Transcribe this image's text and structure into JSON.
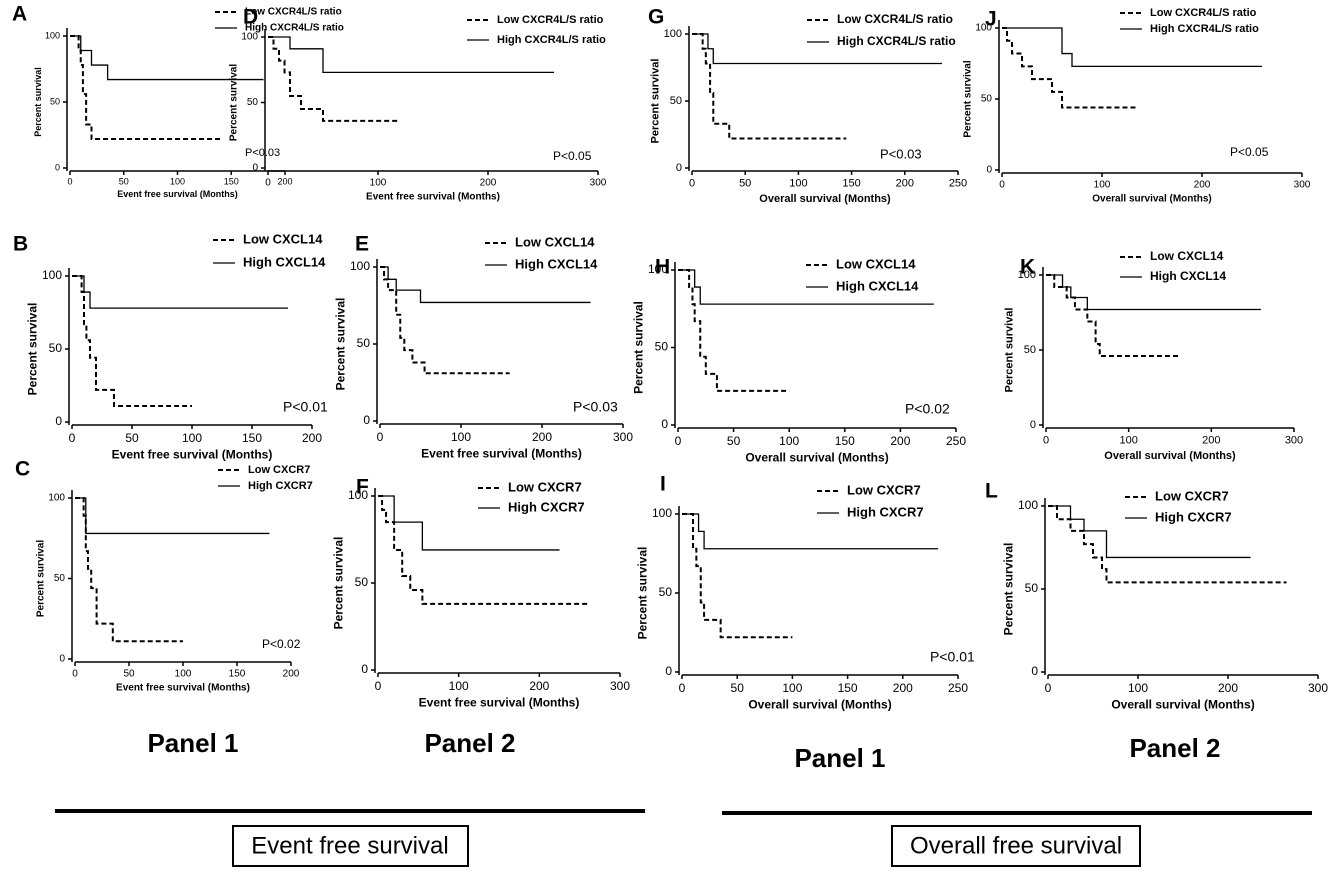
{
  "chart_data": [
    {
      "type": "step",
      "title": "A",
      "xlabel": "Event free survival (Months)",
      "ylabel": "Percent survival",
      "annotation": "P<0.03",
      "xlim": [
        0,
        200
      ],
      "ylim": [
        0,
        100
      ],
      "xticks": [
        0,
        50,
        100,
        150,
        200
      ],
      "yticks": [
        0,
        50,
        100
      ],
      "series": [
        {
          "name": "Low CXCR4L/S ratio",
          "color": "#000000",
          "style": "dashed",
          "x": [
            0,
            8,
            10,
            12,
            15,
            20,
            140
          ],
          "values": [
            100,
            89,
            78,
            56,
            33,
            22,
            22
          ]
        },
        {
          "name": "High CXCR4L/S ratio",
          "color": "#000000",
          "style": "solid",
          "x": [
            0,
            10,
            20,
            35,
            180
          ],
          "values": [
            100,
            89,
            78,
            67,
            67
          ]
        }
      ]
    },
    {
      "type": "step",
      "title": "B",
      "xlabel": "Event free survival (Months)",
      "ylabel": "Percent survival",
      "annotation": "P<0.01",
      "xlim": [
        0,
        200
      ],
      "ylim": [
        0,
        100
      ],
      "xticks": [
        0,
        50,
        100,
        150,
        200
      ],
      "yticks": [
        0,
        50,
        100
      ],
      "series": [
        {
          "name": "Low CXCL14",
          "color": "#000000",
          "style": "dashed",
          "x": [
            0,
            8,
            10,
            12,
            15,
            20,
            35,
            100
          ],
          "values": [
            100,
            89,
            67,
            56,
            44,
            22,
            11,
            11
          ]
        },
        {
          "name": "High CXCL14",
          "color": "#000000",
          "style": "solid",
          "x": [
            0,
            10,
            15,
            180
          ],
          "values": [
            100,
            89,
            78,
            78
          ]
        }
      ]
    },
    {
      "type": "step",
      "title": "C",
      "xlabel": "Event free survival (Months)",
      "ylabel": "Percent survival",
      "annotation": "P<0.02",
      "xlim": [
        0,
        200
      ],
      "ylim": [
        0,
        100
      ],
      "xticks": [
        0,
        50,
        100,
        150,
        200
      ],
      "yticks": [
        0,
        50,
        100
      ],
      "series": [
        {
          "name": "Low CXCR7",
          "color": "#000000",
          "style": "dashed",
          "x": [
            0,
            8,
            10,
            12,
            15,
            20,
            35,
            100
          ],
          "values": [
            100,
            89,
            67,
            56,
            44,
            22,
            11,
            11
          ]
        },
        {
          "name": "High CXCR7",
          "color": "#000000",
          "style": "solid",
          "x": [
            0,
            10,
            180
          ],
          "values": [
            100,
            78,
            78
          ]
        }
      ]
    },
    {
      "type": "step",
      "title": "D",
      "xlabel": "Event free survival (Months)",
      "ylabel": "Percent survival",
      "annotation": "P<0.05",
      "xlim": [
        0,
        300
      ],
      "ylim": [
        0,
        100
      ],
      "xticks": [
        0,
        100,
        200,
        300
      ],
      "yticks": [
        0,
        50,
        100
      ],
      "series": [
        {
          "name": "Low CXCR4L/S ratio",
          "color": "#000000",
          "style": "dashed",
          "x": [
            0,
            5,
            10,
            15,
            20,
            30,
            50,
            120
          ],
          "values": [
            100,
            91,
            82,
            73,
            55,
            45,
            36,
            36
          ]
        },
        {
          "name": "High CXCR4L/S ratio",
          "color": "#000000",
          "style": "solid",
          "x": [
            0,
            20,
            50,
            260
          ],
          "values": [
            100,
            91,
            73,
            73
          ]
        }
      ]
    },
    {
      "type": "step",
      "title": "E",
      "xlabel": "Event free survival (Months)",
      "ylabel": "Percent survival",
      "annotation": "P<0.03",
      "xlim": [
        0,
        300
      ],
      "ylim": [
        0,
        100
      ],
      "xticks": [
        0,
        100,
        200,
        300
      ],
      "yticks": [
        0,
        50,
        100
      ],
      "series": [
        {
          "name": "Low CXCL14",
          "color": "#000000",
          "style": "dashed",
          "x": [
            0,
            5,
            10,
            20,
            25,
            30,
            40,
            55,
            160
          ],
          "values": [
            100,
            92,
            85,
            69,
            54,
            46,
            38,
            31,
            31
          ]
        },
        {
          "name": "High CXCL14",
          "color": "#000000",
          "style": "solid",
          "x": [
            0,
            10,
            20,
            50,
            260
          ],
          "values": [
            100,
            92,
            85,
            77,
            77
          ]
        }
      ]
    },
    {
      "type": "step",
      "title": "F",
      "xlabel": "Event free survival (Months)",
      "ylabel": "Percent survival",
      "xlim": [
        0,
        300
      ],
      "ylim": [
        0,
        100
      ],
      "xticks": [
        0,
        100,
        200,
        300
      ],
      "yticks": [
        0,
        50,
        100
      ],
      "series": [
        {
          "name": "Low CXCR7",
          "color": "#000000",
          "style": "dashed",
          "x": [
            0,
            5,
            10,
            20,
            30,
            40,
            55,
            260
          ],
          "values": [
            100,
            92,
            85,
            69,
            54,
            46,
            38,
            38
          ]
        },
        {
          "name": "High CXCR7",
          "color": "#000000",
          "style": "solid",
          "x": [
            0,
            20,
            55,
            225
          ],
          "values": [
            100,
            85,
            69,
            69
          ]
        }
      ]
    },
    {
      "type": "step",
      "title": "G",
      "xlabel": "Overall survival (Months)",
      "ylabel": "Percent survival",
      "annotation": "P<0.03",
      "xlim": [
        0,
        250
      ],
      "ylim": [
        0,
        100
      ],
      "xticks": [
        0,
        50,
        100,
        150,
        200,
        250
      ],
      "yticks": [
        0,
        50,
        100
      ],
      "series": [
        {
          "name": "Low CXCR4L/S ratio",
          "color": "#000000",
          "style": "dashed",
          "x": [
            0,
            10,
            13,
            17,
            20,
            35,
            145
          ],
          "values": [
            100,
            89,
            78,
            56,
            33,
            22,
            22
          ]
        },
        {
          "name": "High CXCR4L/S ratio",
          "color": "#000000",
          "style": "solid",
          "x": [
            0,
            15,
            20,
            235
          ],
          "values": [
            100,
            89,
            78,
            78
          ]
        }
      ]
    },
    {
      "type": "step",
      "title": "H",
      "xlabel": "Overall survival (Months)",
      "ylabel": "Percent survival",
      "annotation": "P<0.02",
      "xlim": [
        0,
        250
      ],
      "ylim": [
        0,
        100
      ],
      "xticks": [
        0,
        50,
        100,
        150,
        200,
        250
      ],
      "yticks": [
        0,
        50,
        100
      ],
      "series": [
        {
          "name": "Low CXCL14",
          "color": "#000000",
          "style": "dashed",
          "x": [
            0,
            10,
            13,
            15,
            20,
            25,
            35,
            100
          ],
          "values": [
            100,
            89,
            78,
            67,
            44,
            33,
            22,
            22
          ]
        },
        {
          "name": "High CXCL14",
          "color": "#000000",
          "style": "solid",
          "x": [
            0,
            15,
            20,
            230
          ],
          "values": [
            100,
            89,
            78,
            78
          ]
        }
      ]
    },
    {
      "type": "step",
      "title": "I",
      "xlabel": "Overall survival (Months)",
      "ylabel": "Percent survival",
      "annotation": "P<0.01",
      "xlim": [
        0,
        250
      ],
      "ylim": [
        0,
        100
      ],
      "xticks": [
        0,
        50,
        100,
        150,
        200,
        250
      ],
      "yticks": [
        0,
        50,
        100
      ],
      "series": [
        {
          "name": "Low CXCR7",
          "color": "#000000",
          "style": "dashed",
          "x": [
            0,
            10,
            13,
            17,
            20,
            35,
            100
          ],
          "values": [
            100,
            78,
            67,
            44,
            33,
            22,
            22
          ]
        },
        {
          "name": "High CXCR7",
          "color": "#000000",
          "style": "solid",
          "x": [
            0,
            15,
            20,
            232
          ],
          "values": [
            100,
            89,
            78,
            78
          ]
        }
      ]
    },
    {
      "type": "step",
      "title": "J",
      "xlabel": "Overall survival (Months)",
      "ylabel": "Percent survival",
      "annotation": "P<0.05",
      "xlim": [
        0,
        300
      ],
      "ylim": [
        0,
        100
      ],
      "xticks": [
        0,
        100,
        200,
        300
      ],
      "yticks": [
        0,
        50,
        100
      ],
      "series": [
        {
          "name": "Low CXCR4L/S ratio",
          "color": "#000000",
          "style": "dashed",
          "x": [
            0,
            5,
            10,
            20,
            30,
            50,
            60,
            135
          ],
          "values": [
            100,
            91,
            82,
            73,
            64,
            55,
            44,
            44
          ]
        },
        {
          "name": "High CXCR4L/S ratio",
          "color": "#000000",
          "style": "solid",
          "x": [
            0,
            60,
            70,
            260
          ],
          "values": [
            100,
            82,
            73,
            73
          ]
        }
      ]
    },
    {
      "type": "step",
      "title": "K",
      "xlabel": "Overall survival (Months)",
      "ylabel": "Percent survival",
      "xlim": [
        0,
        300
      ],
      "ylim": [
        0,
        100
      ],
      "xticks": [
        0,
        100,
        200,
        300
      ],
      "yticks": [
        0,
        50,
        100
      ],
      "series": [
        {
          "name": "Low CXCL14",
          "color": "#000000",
          "style": "dashed",
          "x": [
            0,
            10,
            25,
            35,
            50,
            60,
            65,
            160
          ],
          "values": [
            100,
            92,
            85,
            77,
            69,
            54,
            46,
            46
          ]
        },
        {
          "name": "High CXCL14",
          "color": "#000000",
          "style": "solid",
          "x": [
            0,
            20,
            30,
            50,
            260
          ],
          "values": [
            100,
            92,
            85,
            77,
            77
          ]
        }
      ]
    },
    {
      "type": "step",
      "title": "L",
      "xlabel": "Overall survival (Months)",
      "ylabel": "Percent survival",
      "xlim": [
        0,
        300
      ],
      "ylim": [
        0,
        100
      ],
      "xticks": [
        0,
        100,
        200,
        300
      ],
      "yticks": [
        0,
        50,
        100
      ],
      "series": [
        {
          "name": "Low CXCR7",
          "color": "#000000",
          "style": "dashed",
          "x": [
            0,
            10,
            25,
            40,
            50,
            60,
            65,
            265
          ],
          "values": [
            100,
            92,
            85,
            77,
            69,
            62,
            54,
            54
          ]
        },
        {
          "name": "High CXCR7",
          "color": "#000000",
          "style": "solid",
          "x": [
            0,
            25,
            40,
            65,
            225
          ],
          "values": [
            100,
            92,
            85,
            69,
            69
          ]
        }
      ]
    }
  ],
  "captions": {
    "panels": [
      "Panel 1",
      "Panel 2",
      "Panel 1",
      "Panel 2"
    ],
    "sections": [
      "Event free survival",
      "Overall free survival"
    ]
  }
}
